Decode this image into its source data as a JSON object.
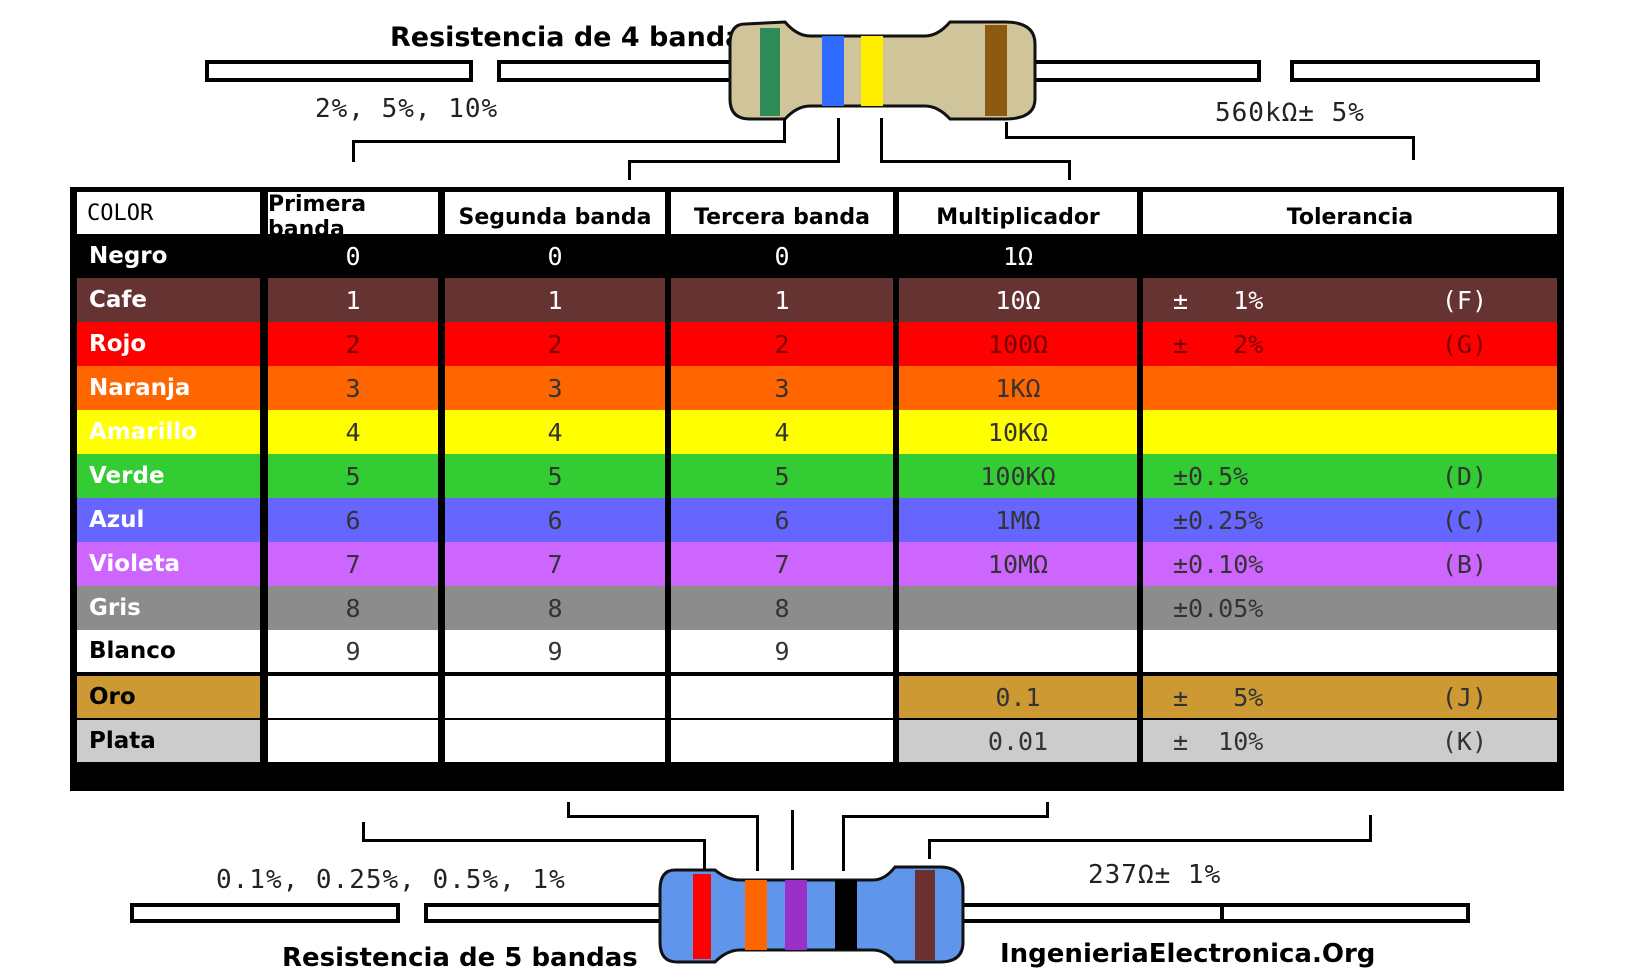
{
  "top_resistor": {
    "title": "Resistencia de 4 bandas",
    "tolerance_options": "2%, 5%, 10%",
    "example_value": "560kΩ± 5%",
    "body_color": "#cfc49a",
    "band_colors": [
      "#2e8b57",
      "#2f6bff",
      "#ffee00",
      "#8b5a10"
    ]
  },
  "bottom_resistor": {
    "title": "Resistencia de 5 bandas",
    "tolerance_options": "0.1%, 0.25%, 0.5%, 1%",
    "example_value": "237Ω± 1%",
    "body_color": "#5f95ea",
    "band_colors": [
      "#ff0000",
      "#ff6600",
      "#9b30c8",
      "#000000",
      "#6b3030"
    ]
  },
  "credit": "IngenieriaElectronica.Org",
  "table": {
    "headers": [
      "COLOR",
      "Primera banda",
      "Segunda banda",
      "Tercera banda",
      "Multiplicador",
      "Tolerancia"
    ],
    "rows": [
      {
        "name": "Negro",
        "bg": "#000000",
        "name_color": "#ffffff",
        "text": "#ffffff",
        "d1": "0",
        "d2": "0",
        "d3": "0",
        "mult": "1Ω",
        "tol": "",
        "code": ""
      },
      {
        "name": "Cafe",
        "bg": "#663333",
        "name_color": "#ffffff",
        "text": "#ffffff",
        "d1": "1",
        "d2": "1",
        "d3": "1",
        "mult": "10Ω",
        "tol": "±   1%",
        "code": "(F)"
      },
      {
        "name": "Rojo",
        "bg": "#ff0000",
        "name_color": "#ffffff",
        "text": "#7a0000",
        "d1": "2",
        "d2": "2",
        "d3": "2",
        "mult": "100Ω",
        "tol": "±   2%",
        "code": "(G)"
      },
      {
        "name": "Naranja",
        "bg": "#ff6600",
        "name_color": "#ffffff",
        "text": "#333333",
        "d1": "3",
        "d2": "3",
        "d3": "3",
        "mult": "1KΩ",
        "tol": "",
        "code": ""
      },
      {
        "name": "Amarillo",
        "bg": "#ffff00",
        "name_color": "#ffffff",
        "text": "#333333",
        "d1": "4",
        "d2": "4",
        "d3": "4",
        "mult": "10KΩ",
        "tol": "",
        "code": ""
      },
      {
        "name": "Verde",
        "bg": "#33cc33",
        "name_color": "#ffffff",
        "text": "#333333",
        "d1": "5",
        "d2": "5",
        "d3": "5",
        "mult": "100KΩ",
        "tol": "±0.5%",
        "code": "(D)"
      },
      {
        "name": "Azul",
        "bg": "#6666ff",
        "name_color": "#ffffff",
        "text": "#333333",
        "d1": "6",
        "d2": "6",
        "d3": "6",
        "mult": "1MΩ",
        "tol": "±0.25%",
        "code": "(C)"
      },
      {
        "name": "Violeta",
        "bg": "#cc66ff",
        "name_color": "#ffffff",
        "text": "#333333",
        "d1": "7",
        "d2": "7",
        "d3": "7",
        "mult": "10MΩ",
        "tol": "±0.10%",
        "code": "(B)"
      },
      {
        "name": "Gris",
        "bg": "#8c8c8c",
        "name_color": "#ffffff",
        "text": "#333333",
        "d1": "8",
        "d2": "8",
        "d3": "8",
        "mult": "",
        "tol": "±0.05%",
        "code": ""
      },
      {
        "name": "Blanco",
        "bg": "#ffffff",
        "name_color": "#000000",
        "text": "#333333",
        "d1": "9",
        "d2": "9",
        "d3": "9",
        "mult": "",
        "tol": "",
        "code": ""
      },
      {
        "name": "Oro",
        "bg": "#cc9933",
        "name_color": "#000000",
        "text": "#333333",
        "d1": "",
        "d2": "",
        "d3": "",
        "mult": "0.1",
        "tol": "±   5%",
        "code": "(J)"
      },
      {
        "name": "Plata",
        "bg": "#cccccc",
        "name_color": "#000000",
        "text": "#333333",
        "d1": "",
        "d2": "",
        "d3": "",
        "mult": "0.01",
        "tol": "±  10%",
        "code": "(K)"
      }
    ]
  }
}
